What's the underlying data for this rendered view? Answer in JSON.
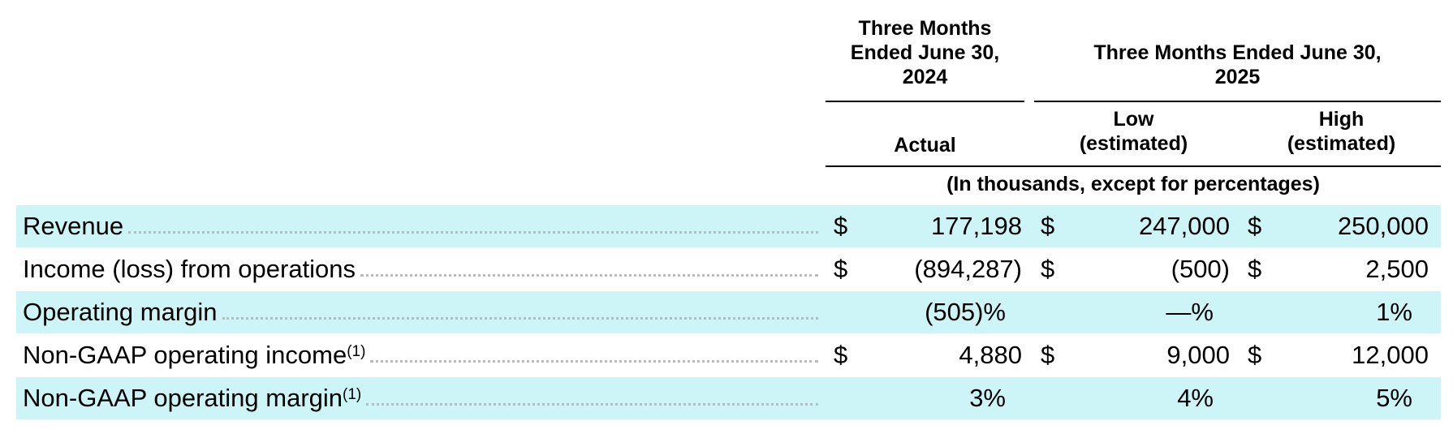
{
  "table": {
    "header": {
      "groups": [
        "Three Months\nEnded June 30,\n2024",
        "Three Months Ended June 30,\n2025"
      ],
      "columns": [
        "Actual",
        "Low\n(estimated)",
        "High\n(estimated)"
      ],
      "unit_note": "(In thousands, except for percentages)"
    },
    "rows": [
      {
        "label": "Revenue",
        "cells": [
          {
            "currency": "$",
            "value": "177,198"
          },
          {
            "currency": "$",
            "value": "247,000"
          },
          {
            "currency": "$",
            "value": "250,000"
          }
        ]
      },
      {
        "label": "Income (loss) from operations",
        "cells": [
          {
            "currency": "$",
            "value": "(894,287)"
          },
          {
            "currency": "$",
            "value": "(500)"
          },
          {
            "currency": "$",
            "value": "2,500"
          }
        ]
      },
      {
        "label": "Operating margin",
        "cells": [
          {
            "value": "(505)%"
          },
          {
            "value": "—%"
          },
          {
            "value": "1%"
          }
        ]
      },
      {
        "label": "Non-GAAP operating income",
        "note": "(1)",
        "cells": [
          {
            "currency": "$",
            "value": "4,880"
          },
          {
            "currency": "$",
            "value": "9,000"
          },
          {
            "currency": "$",
            "value": "12,000"
          }
        ]
      },
      {
        "label": "Non-GAAP operating margin",
        "note": "(1)",
        "cells": [
          {
            "value": "3%"
          },
          {
            "value": "4%"
          },
          {
            "value": "5%"
          }
        ]
      }
    ]
  }
}
